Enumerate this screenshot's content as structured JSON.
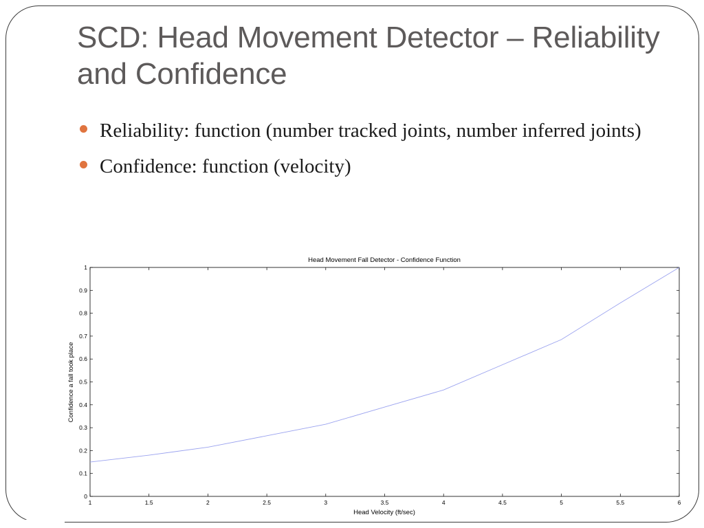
{
  "slide": {
    "title": "SCD: Head Movement Detector – Reliability and Confidence",
    "bullets": [
      "Reliability: function (number tracked joints, number inferred joints)",
      "Confidence: function (velocity)"
    ],
    "colors": {
      "title": "#5d5a5a",
      "bullet_marker": "#e0743f",
      "series_line": "#9aa2ef"
    }
  },
  "chart_data": {
    "type": "line",
    "title": "Head Movement Fall Detector - Confidence Function",
    "xlabel": "Head Velocity (ft/sec)",
    "ylabel": "Confidence a fall took place",
    "xlim": [
      1,
      6
    ],
    "ylim": [
      0,
      1
    ],
    "x_ticks": [
      "1",
      "1.5",
      "2",
      "2.5",
      "3",
      "3.5",
      "4",
      "4.5",
      "5",
      "5.5",
      "6"
    ],
    "y_ticks": [
      "0",
      "0.1",
      "0.2",
      "0.3",
      "0.4",
      "0.5",
      "0.6",
      "0.7",
      "0.8",
      "0.9",
      "1"
    ],
    "grid": false,
    "series": [
      {
        "x": [
          1,
          1.5,
          2,
          2.5,
          3,
          3.5,
          4,
          4.5,
          5,
          5.5,
          6
        ],
        "y": [
          0.15,
          0.18,
          0.215,
          0.265,
          0.315,
          0.39,
          0.465,
          0.575,
          0.685,
          0.845,
          1.0
        ]
      }
    ]
  }
}
